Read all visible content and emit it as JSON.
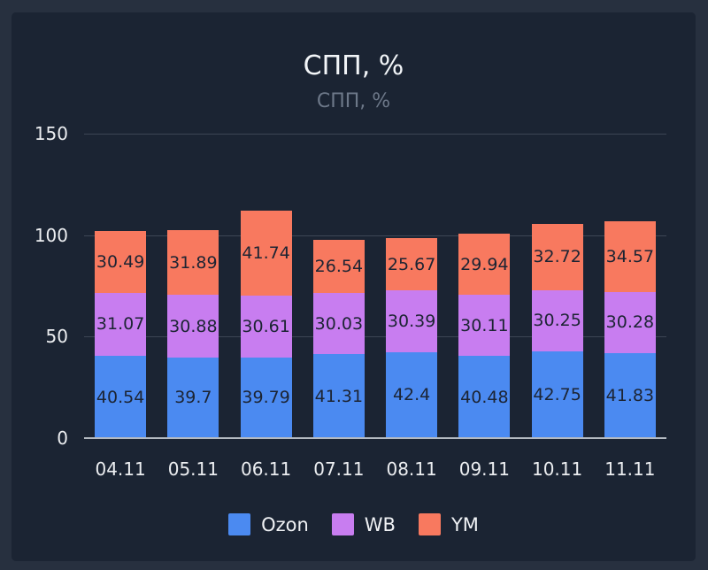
{
  "page": {
    "outer_background": "#27303f",
    "panel_background": "#1b2433"
  },
  "header": {
    "title": "СПП, %",
    "subtitle": "СПП, %"
  },
  "chart_data": {
    "type": "bar",
    "stacked": true,
    "title": "СПП, %",
    "subtitle": "СПП, %",
    "categories": [
      "04.11",
      "05.11",
      "06.11",
      "07.11",
      "08.11",
      "09.11",
      "10.11",
      "11.11"
    ],
    "series": [
      {
        "name": "Ozon",
        "color": "#4b8af1",
        "values": [
          40.54,
          39.7,
          39.79,
          41.31,
          42.4,
          40.48,
          42.75,
          41.83
        ]
      },
      {
        "name": "WB",
        "color": "#c87df0",
        "values": [
          31.07,
          30.88,
          30.61,
          30.03,
          30.39,
          30.11,
          30.25,
          30.28
        ]
      },
      {
        "name": "YM",
        "color": "#f8795f",
        "values": [
          30.49,
          31.89,
          41.74,
          26.54,
          25.67,
          29.94,
          32.72,
          34.57
        ]
      }
    ],
    "xlabel": "",
    "ylabel": "",
    "y_axis": {
      "ticks": [
        0,
        50,
        100,
        150
      ],
      "min": 0,
      "max": 150
    },
    "grid": true,
    "legend_position": "bottom",
    "colors": {
      "grid_line": "#3d4655",
      "axis_line": "#b4bac2",
      "tick_label": "#eceef1",
      "subtitle_text": "#6d7889",
      "bar_value_label": "#1c2433"
    }
  }
}
